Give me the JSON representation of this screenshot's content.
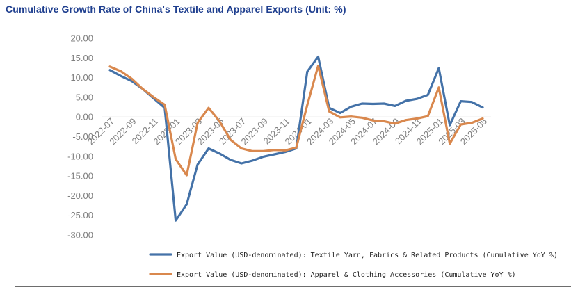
{
  "title": "Cumulative Growth Rate of China's Textile and Apparel Exports (Unit: %)",
  "chart_data": {
    "type": "line",
    "title": "Cumulative Growth Rate of China's Textile and Apparel Exports (Unit: %)",
    "xlabel": "",
    "ylabel": "",
    "ylim": [
      -30,
      20
    ],
    "y_ticks": [
      "20.00",
      "15.00",
      "10.00",
      "5.00",
      "0.00",
      "-5.00",
      "-10.00",
      "-15.00",
      "-20.00",
      "-25.00",
      "-30.00"
    ],
    "x": [
      "2022-07",
      "2022-08",
      "2022-09",
      "2022-10",
      "2022-11",
      "2022-12",
      "2023-01",
      "2023-02",
      "2023-03",
      "2023-04",
      "2023-05",
      "2023-06",
      "2023-07",
      "2023-08",
      "2023-09",
      "2023-10",
      "2023-11",
      "2023-12",
      "2024-01",
      "2024-02",
      "2024-03",
      "2024-04",
      "2024-05",
      "2024-06",
      "2024-07",
      "2024-08",
      "2024-09",
      "2024-10",
      "2024-11",
      "2024-12",
      "2025-01",
      "2025-02",
      "2025-03",
      "2025-04",
      "2025-05"
    ],
    "x_tick_labels": [
      "2022-07",
      "2022-09",
      "2022-11",
      "2023-01",
      "2023-03",
      "2023-05",
      "2023-07",
      "2023-09",
      "2023-11",
      "2024-01",
      "2024-03",
      "2024-05",
      "2024-07",
      "2024-09",
      "2024-11",
      "2025-01",
      "2025-03",
      "2025-05"
    ],
    "grid": false,
    "legend_position": "bottom",
    "series": [
      {
        "name": "Export Value (USD-denominated): Textile Yarn, Fabrics & Related Products (Cumulative YoY %)",
        "color": "#4472a8",
        "values": [
          11.9,
          10.4,
          9.1,
          7.1,
          4.7,
          2.3,
          -26.3,
          -22.2,
          -12.1,
          -8.0,
          -9.3,
          -10.9,
          -11.8,
          -11.1,
          -10.1,
          -9.5,
          -8.9,
          -8.0,
          11.5,
          15.3,
          2.3,
          1.0,
          2.6,
          3.4,
          3.3,
          3.4,
          2.8,
          4.1,
          4.6,
          5.6,
          12.4,
          -2.1,
          4.0,
          3.8,
          2.4
        ]
      },
      {
        "name": "Export Value (USD-denominated): Apparel & Clothing Accessories (Cumulative YoY %)",
        "color": "#d9884e",
        "values": [
          12.8,
          11.6,
          9.7,
          7.1,
          5.0,
          3.1,
          -10.7,
          -14.8,
          -1.5,
          2.3,
          -1.1,
          -5.8,
          -8.0,
          -8.7,
          -8.7,
          -8.4,
          -8.5,
          -7.8,
          3.0,
          13.0,
          1.4,
          -0.1,
          0.1,
          -0.2,
          -0.9,
          -1.1,
          -1.7,
          -0.8,
          -0.4,
          0.2,
          7.5,
          -6.8,
          -1.9,
          -1.5,
          -0.4
        ]
      }
    ]
  }
}
